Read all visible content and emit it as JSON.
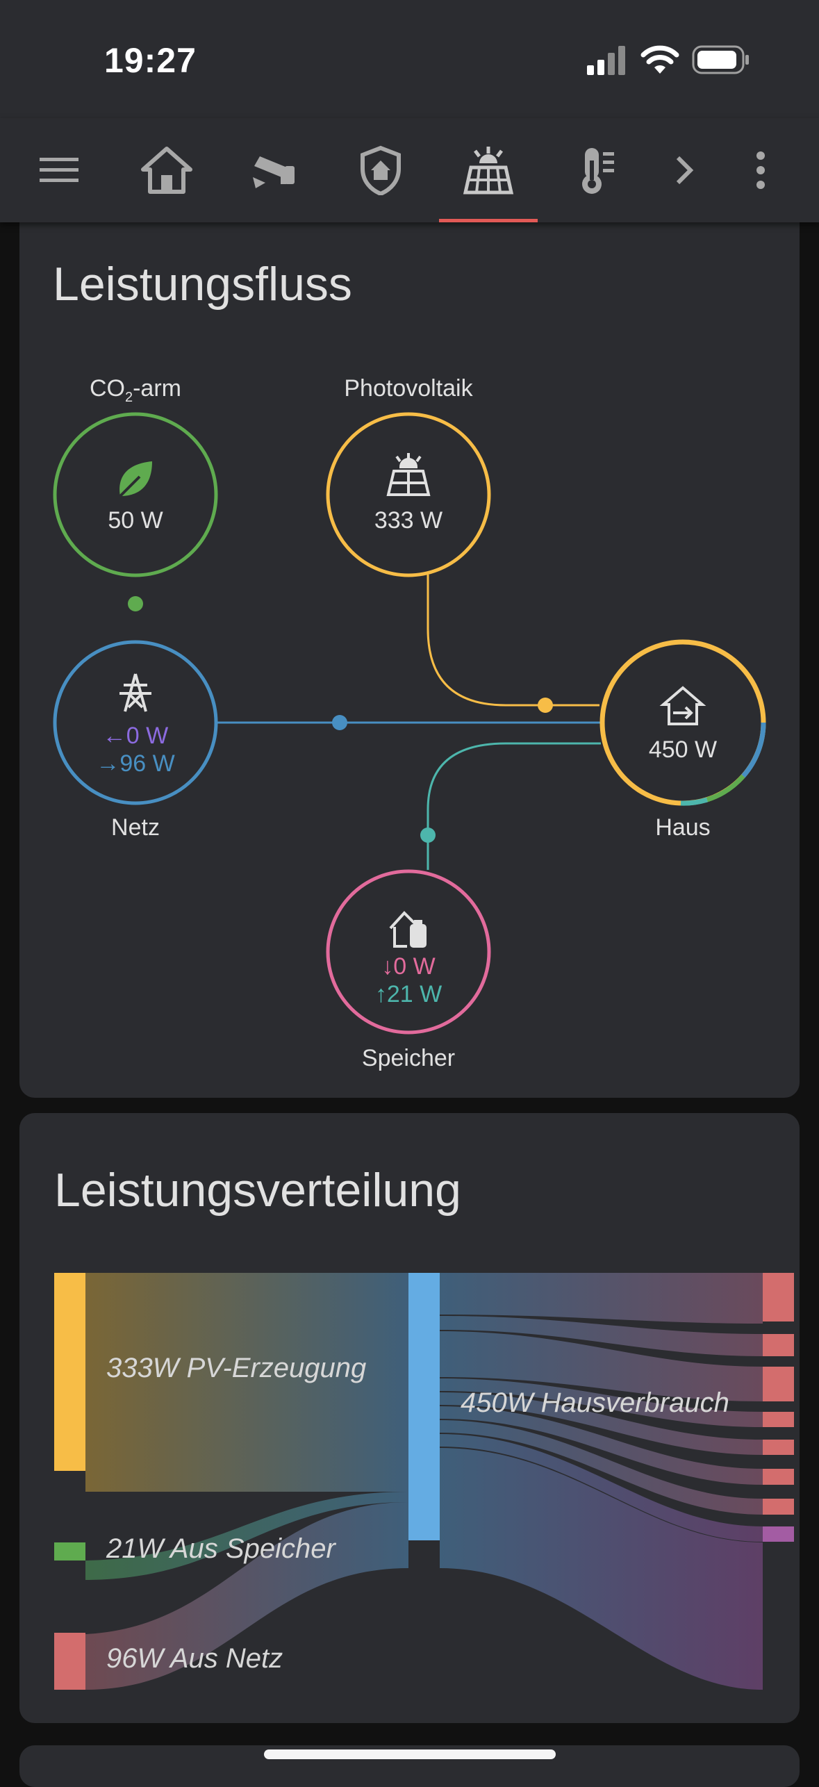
{
  "status_bar": {
    "time": "19:27",
    "icons": [
      "cellular-signal-icon",
      "wifi-icon",
      "battery-icon"
    ]
  },
  "toolbar": {
    "tabs": [
      {
        "icon": "menu-icon"
      },
      {
        "icon": "home-icon"
      },
      {
        "icon": "security-camera-icon"
      },
      {
        "icon": "shield-home-icon"
      },
      {
        "icon": "solar-panel-icon",
        "active": true
      },
      {
        "icon": "thermometer-icon"
      },
      {
        "icon": "chevron-right-icon"
      },
      {
        "icon": "more-vertical-icon"
      }
    ],
    "accent_color": "#e25a56"
  },
  "power_flow": {
    "title": "Leistungsfluss",
    "co2": {
      "label_prefix": "CO",
      "label_sub": "2",
      "label_suffix": "-arm",
      "value": "50 W",
      "color": "#5fab4f"
    },
    "solar": {
      "label": "Photovoltaik",
      "value": "333 W",
      "color": "#f7bd47"
    },
    "grid": {
      "label": "Netz",
      "value_in": "0 W",
      "value_out": "96 W",
      "arrow_in": "←",
      "arrow_out": "→",
      "color": "#488fc2",
      "in_color": "#8c6be0",
      "out_color": "#488fc2"
    },
    "home": {
      "label": "Haus",
      "value": "450 W",
      "color": "#f7bd47"
    },
    "battery": {
      "label": "Speicher",
      "value_in": "0 W",
      "value_out": "21 W",
      "arrow_in": "↓",
      "arrow_out": "↑",
      "color": "#e26b9c",
      "in_color": "#e26b9c",
      "out_color": "#4db6ac"
    }
  },
  "power_distribution": {
    "title": "Leistungsverteilung",
    "sources": [
      {
        "label": "333W PV-Erzeugung",
        "color": "#f7bd47"
      },
      {
        "label": "21W Aus Speicher",
        "color": "#5fab4f"
      },
      {
        "label": "96W Aus Netz",
        "color": "#d36d6d"
      }
    ],
    "total": {
      "label": "450W Hausverbrauch",
      "color": "#64ace3"
    }
  }
}
